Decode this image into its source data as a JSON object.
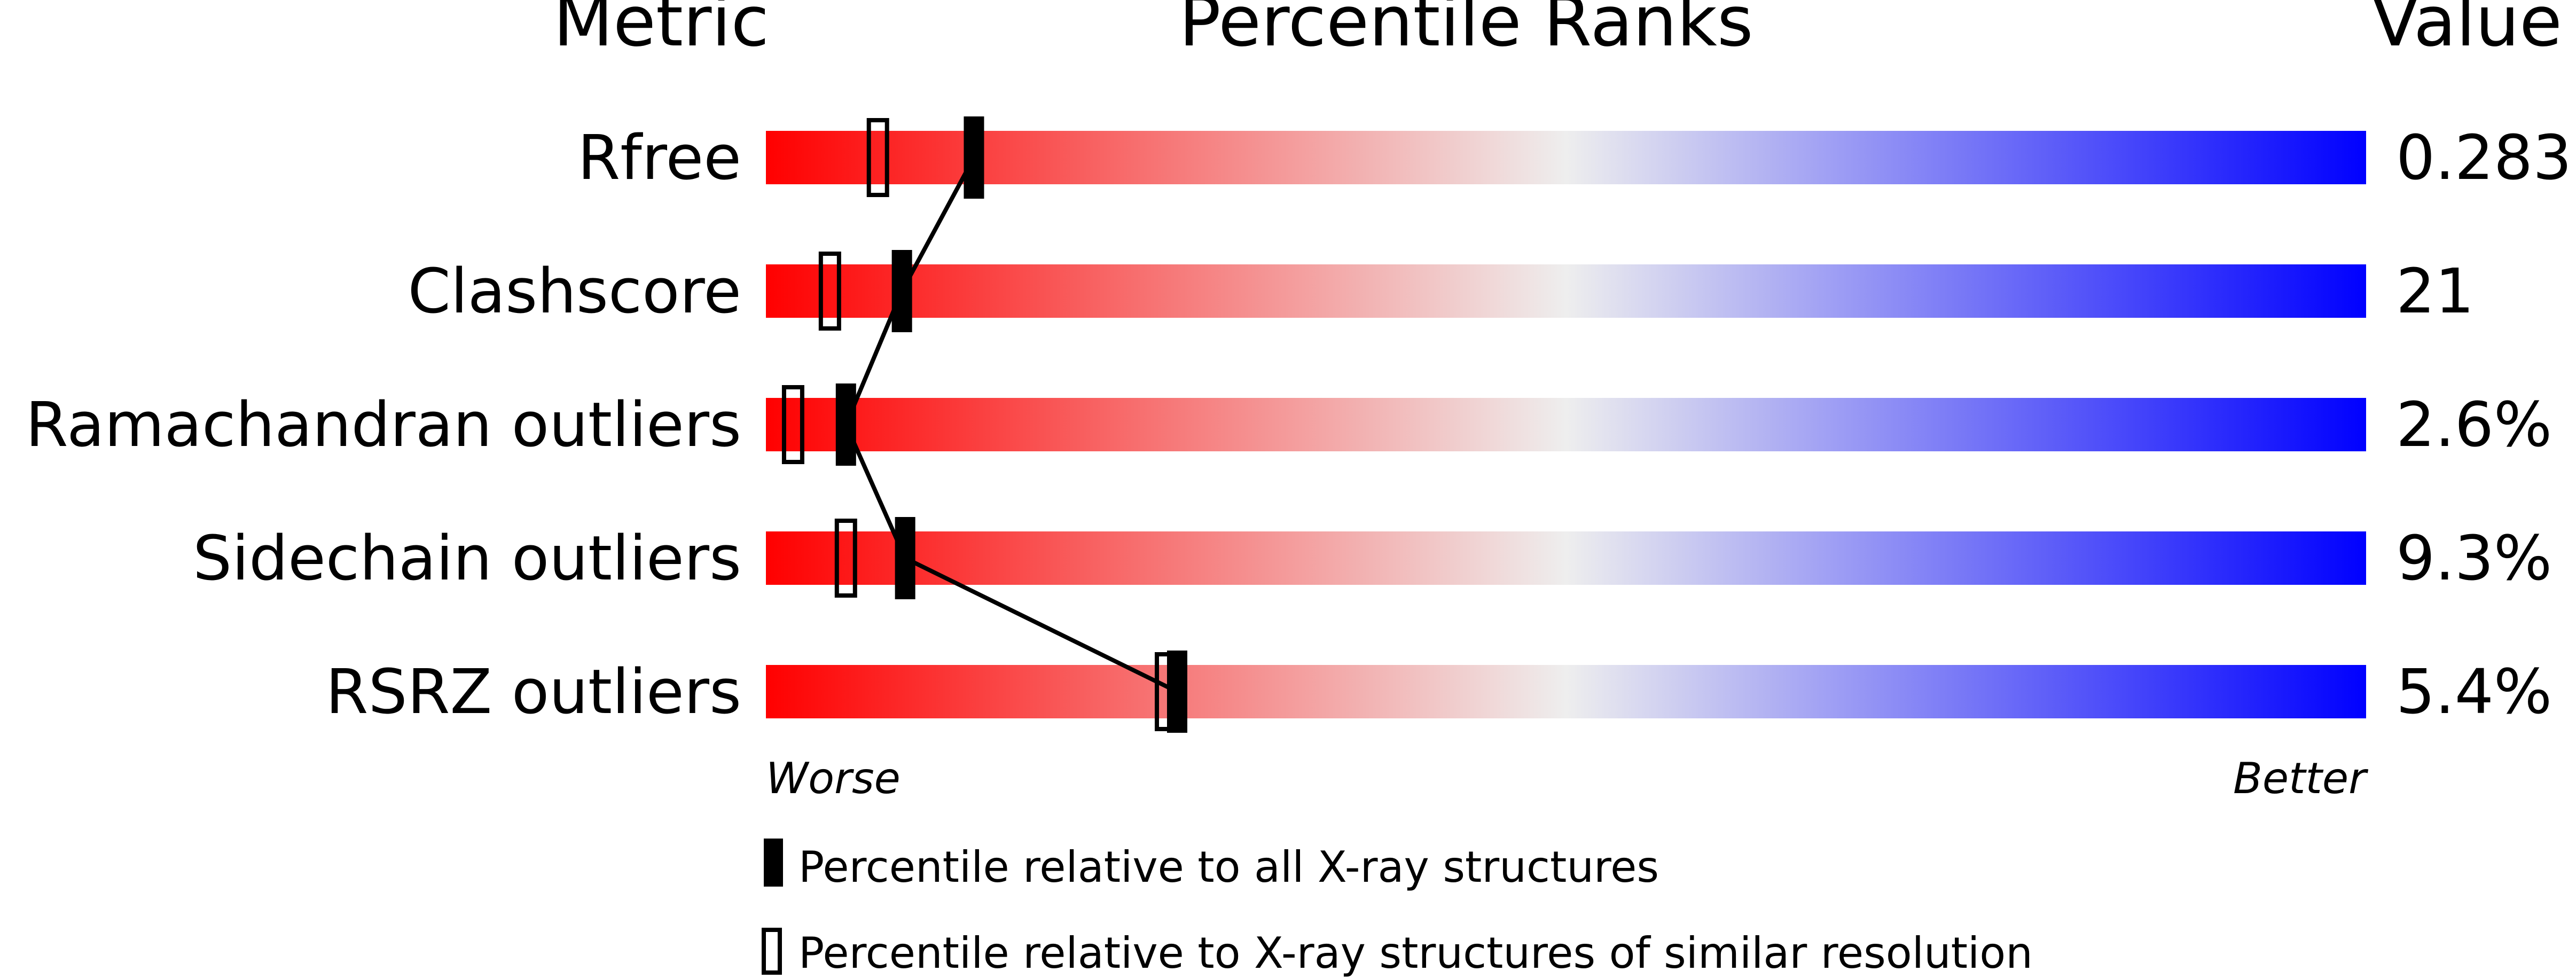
{
  "chart_data": {
    "type": "percentile-bar",
    "headers": {
      "metric": "Metric",
      "percentile": "Percentile Ranks",
      "value": "Value"
    },
    "x_range": [
      0,
      100
    ],
    "gradient_colors": [
      "#ff0000",
      "#eeeeee",
      "#0000ff"
    ],
    "metrics": [
      {
        "label": "Rfree",
        "value": "0.283",
        "percentile_all": 13,
        "percentile_similar": 7
      },
      {
        "label": "Clashscore",
        "value": "21",
        "percentile_all": 8.5,
        "percentile_similar": 4
      },
      {
        "label": "Ramachandran outliers",
        "value": "2.6%",
        "percentile_all": 5,
        "percentile_similar": 1.7
      },
      {
        "label": "Sidechain outliers",
        "value": "9.3%",
        "percentile_all": 8.7,
        "percentile_similar": 5
      },
      {
        "label": "RSRZ outliers",
        "value": "5.4%",
        "percentile_all": 25.7,
        "percentile_similar": 25
      }
    ],
    "axis_labels": {
      "worse": "Worse",
      "better": "Better"
    },
    "legend": [
      {
        "marker": "filled",
        "text": "Percentile relative to all X-ray structures"
      },
      {
        "marker": "open",
        "text": "Percentile relative to X-ray structures of similar resolution"
      }
    ]
  }
}
